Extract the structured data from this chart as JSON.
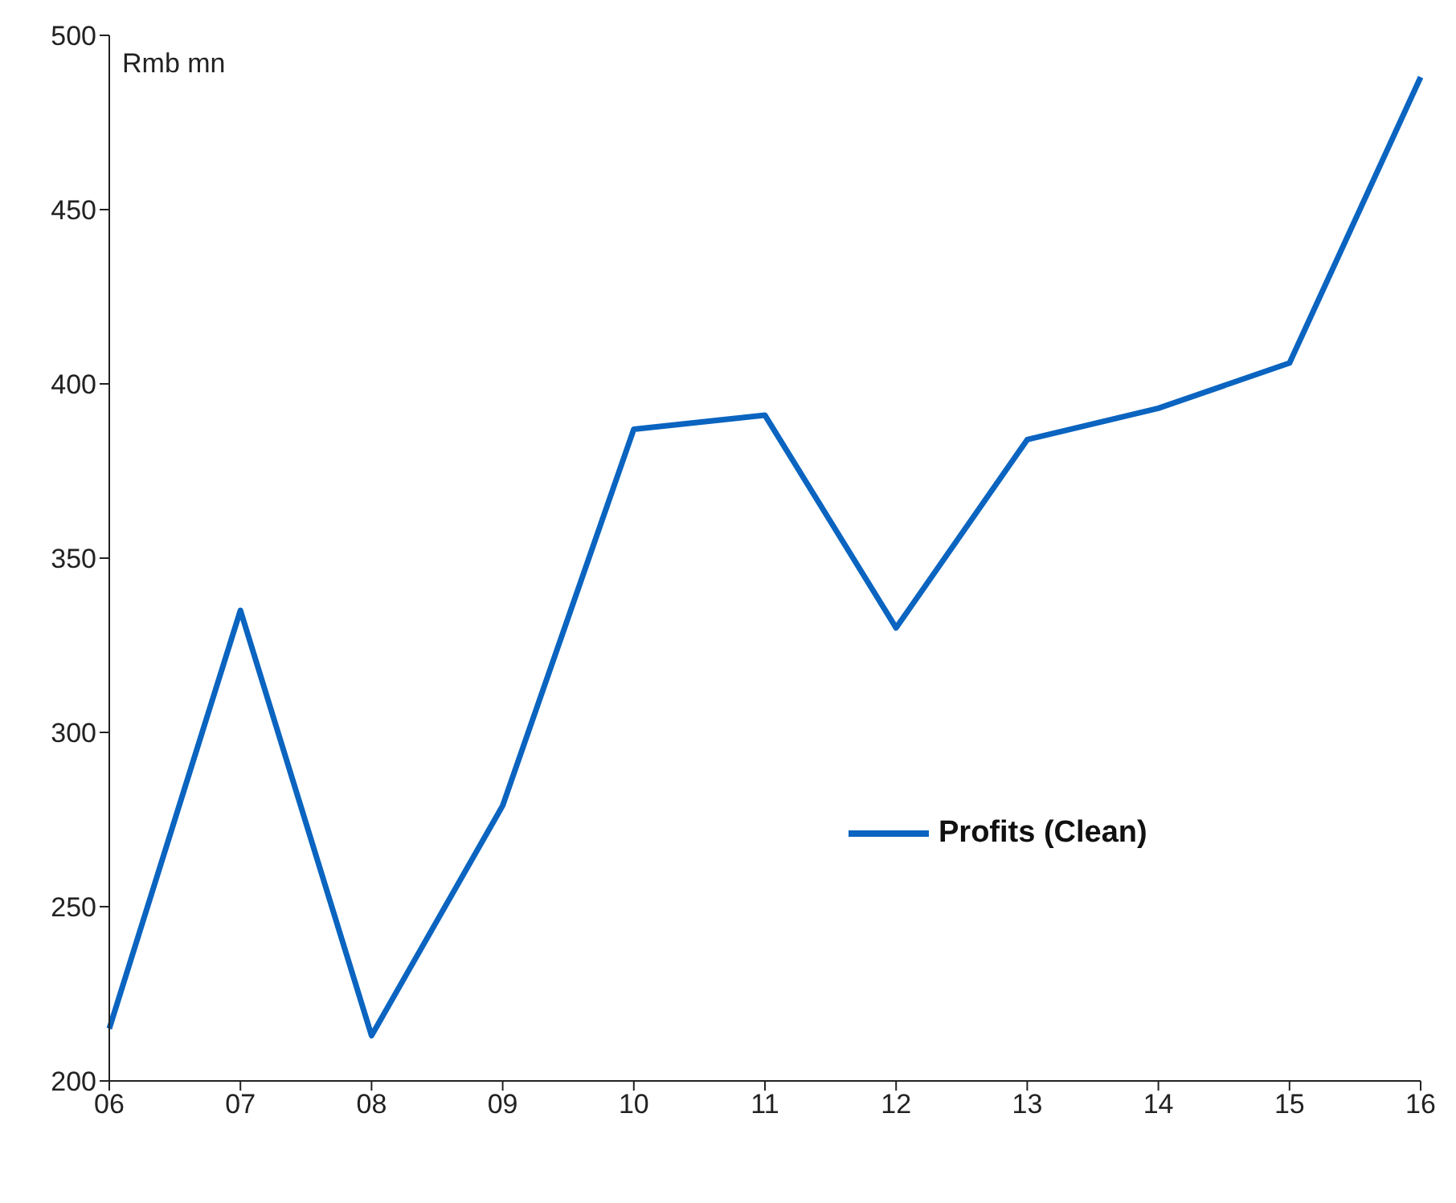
{
  "chart_data": {
    "type": "line",
    "ylabel": "Rmb mn",
    "categories": [
      "06",
      "07",
      "08",
      "09",
      "10",
      "11",
      "12",
      "13",
      "14",
      "15",
      "16"
    ],
    "series": [
      {
        "name": "Profits (Clean)",
        "color": "#0a64c0",
        "values": [
          215,
          335,
          213,
          279,
          387,
          391,
          330,
          384,
          393,
          406,
          488
        ]
      }
    ],
    "ylim": [
      200,
      500
    ],
    "yticks": [
      200,
      250,
      300,
      350,
      400,
      450,
      500
    ],
    "grid": false,
    "legend": "right",
    "marker": "none",
    "line_style": "solid"
  }
}
